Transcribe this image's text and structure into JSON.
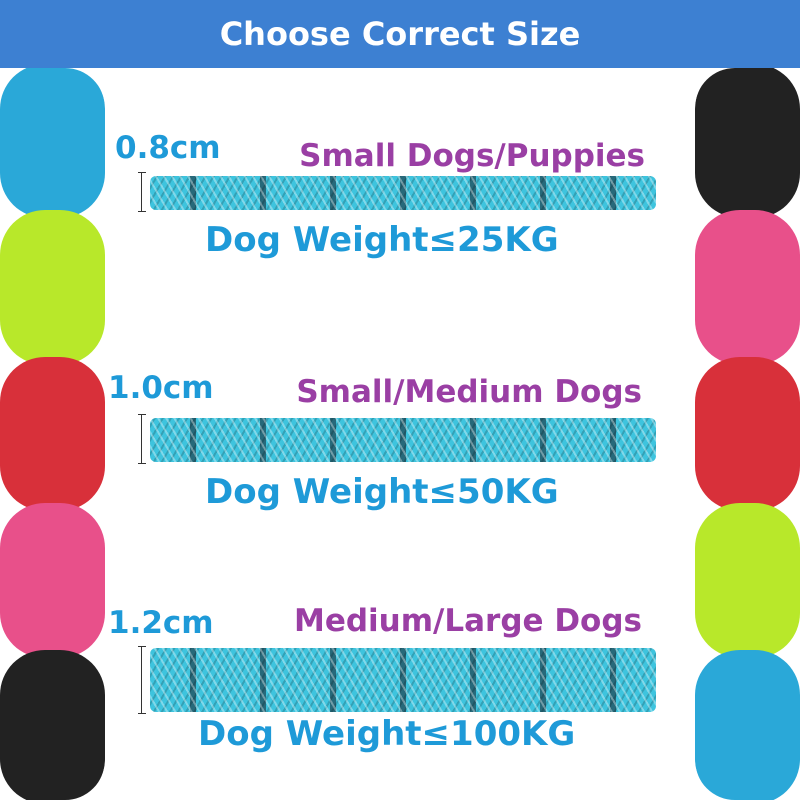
{
  "header": {
    "title": "Choose Correct Size"
  },
  "colors": {
    "header": "#3d80d2",
    "size_text": "#1e9ad8",
    "type_text": "#9a3fa4",
    "rope": "#3ec4de"
  },
  "left_swatches": [
    "#2aa8d8",
    "#b8e82a",
    "#d8303a",
    "#e8508a",
    "#222222"
  ],
  "right_swatches": [
    "#222222",
    "#e8508a",
    "#d8303a",
    "#b8e82a",
    "#2aa8d8"
  ],
  "sizes": [
    {
      "diameter": "0.8cm",
      "dogs": "Small Dogs/Puppies",
      "weight": "Dog Weight≤25KG"
    },
    {
      "diameter": "1.0cm",
      "dogs": "Small/Medium Dogs",
      "weight": "Dog Weight≤50KG"
    },
    {
      "diameter": "1.2cm",
      "dogs": "Medium/Large Dogs",
      "weight": "Dog Weight≤100KG"
    }
  ]
}
